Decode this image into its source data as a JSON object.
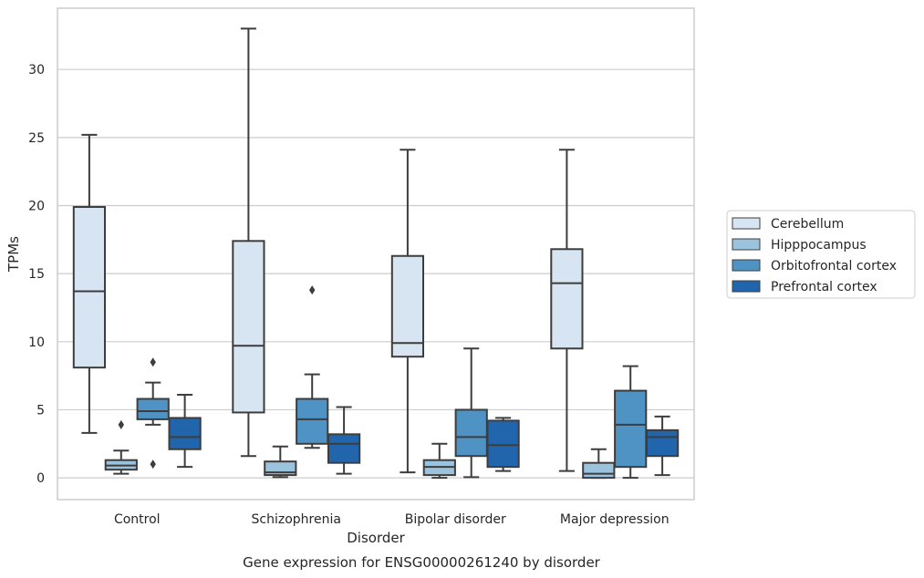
{
  "chart_data": {
    "type": "box",
    "title": "",
    "caption": "Gene expression for ENSG00000261240 by disorder",
    "xlabel": "Disorder",
    "ylabel": "TPMs",
    "ylim": [
      -1.6,
      34.5
    ],
    "yticks": [
      0,
      5,
      10,
      15,
      20,
      25,
      30
    ],
    "grid": "horizontal",
    "legend_position": "right",
    "categories": [
      "Control",
      "Schizophrenia",
      "Bipolar disorder",
      "Major depression"
    ],
    "series": [
      {
        "name": "Cerebellum",
        "color": "#d7e4f1",
        "boxes": [
          {
            "whislo": 3.3,
            "q1": 8.1,
            "med": 13.7,
            "q3": 19.9,
            "whishi": 25.2,
            "fliers": []
          },
          {
            "whislo": 1.6,
            "q1": 4.8,
            "med": 9.7,
            "q3": 17.4,
            "whishi": 33.0,
            "fliers": []
          },
          {
            "whislo": 0.4,
            "q1": 8.9,
            "med": 9.9,
            "q3": 16.3,
            "whishi": 24.1,
            "fliers": []
          },
          {
            "whislo": 0.5,
            "q1": 9.5,
            "med": 14.3,
            "q3": 16.8,
            "whishi": 24.1,
            "fliers": []
          }
        ]
      },
      {
        "name": "Hipppocampus",
        "color": "#9cc3de",
        "boxes": [
          {
            "whislo": 0.3,
            "q1": 0.6,
            "med": 0.9,
            "q3": 1.3,
            "whishi": 2.0,
            "fliers": [
              3.9
            ]
          },
          {
            "whislo": 0.05,
            "q1": 0.2,
            "med": 0.4,
            "q3": 1.2,
            "whishi": 2.3,
            "fliers": []
          },
          {
            "whislo": 0.0,
            "q1": 0.2,
            "med": 0.8,
            "q3": 1.3,
            "whishi": 2.5,
            "fliers": []
          },
          {
            "whislo": 0.0,
            "q1": 0.0,
            "med": 0.3,
            "q3": 1.1,
            "whishi": 2.1,
            "fliers": []
          }
        ]
      },
      {
        "name": "Orbitofrontal cortex",
        "color": "#4f93c4",
        "boxes": [
          {
            "whislo": 3.9,
            "q1": 4.3,
            "med": 4.9,
            "q3": 5.8,
            "whishi": 7.0,
            "fliers": [
              8.5,
              1.0
            ]
          },
          {
            "whislo": 2.2,
            "q1": 2.5,
            "med": 4.3,
            "q3": 5.8,
            "whishi": 7.6,
            "fliers": [
              13.8
            ]
          },
          {
            "whislo": 0.05,
            "q1": 1.6,
            "med": 3.0,
            "q3": 5.0,
            "whishi": 9.5,
            "fliers": []
          },
          {
            "whislo": 0.0,
            "q1": 0.8,
            "med": 3.9,
            "q3": 6.4,
            "whishi": 8.2,
            "fliers": []
          }
        ]
      },
      {
        "name": "Prefrontal cortex",
        "color": "#2166ac",
        "boxes": [
          {
            "whislo": 0.8,
            "q1": 2.1,
            "med": 3.0,
            "q3": 4.4,
            "whishi": 6.1,
            "fliers": []
          },
          {
            "whislo": 0.3,
            "q1": 1.1,
            "med": 2.5,
            "q3": 3.2,
            "whishi": 5.2,
            "fliers": []
          },
          {
            "whislo": 0.5,
            "q1": 0.8,
            "med": 2.4,
            "q3": 4.2,
            "whishi": 4.4,
            "fliers": []
          },
          {
            "whislo": 0.2,
            "q1": 1.6,
            "med": 3.0,
            "q3": 3.5,
            "whishi": 4.5,
            "fliers": []
          }
        ]
      }
    ]
  }
}
